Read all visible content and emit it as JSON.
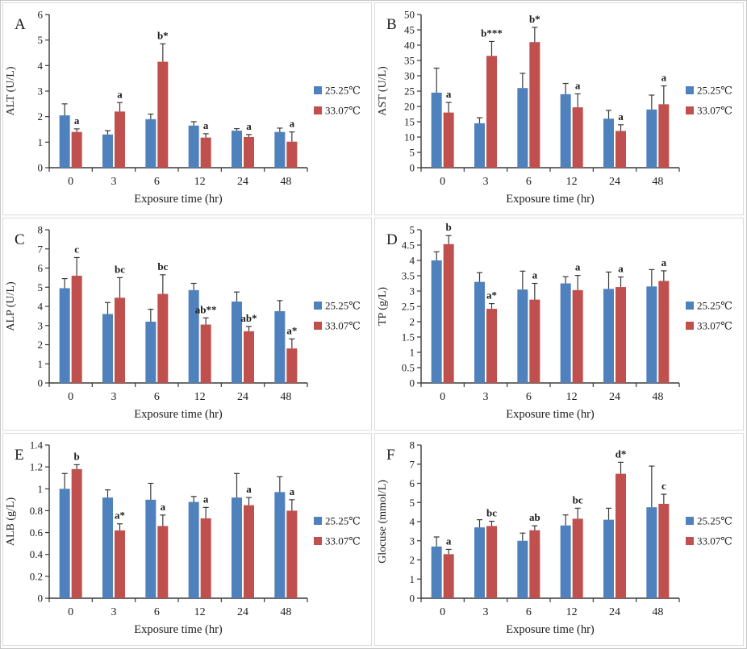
{
  "figure": {
    "xlabel": "Exposure time (hr)",
    "categories": [
      "0",
      "3",
      "6",
      "12",
      "24",
      "48"
    ],
    "legend": [
      {
        "label": "25.25℃",
        "color": "#4f81bd"
      },
      {
        "label": "33.07℃",
        "color": "#c0504d"
      }
    ],
    "colors": {
      "series1": "#4f81bd",
      "series2": "#c0504d",
      "axis": "#3a3a3a",
      "error_bar": "#3a3a3a",
      "text": "#1c1c1c"
    },
    "legend_position": "right",
    "grid_lines": "off",
    "error_bars": "upper-only"
  },
  "chart_data": [
    {
      "panel": "A",
      "type": "bar",
      "ylabel": "ALT (U/L)",
      "xlabel": "Exposure time (hr)",
      "categories": [
        "0",
        "3",
        "6",
        "12",
        "24",
        "48"
      ],
      "ylim": [
        0,
        6
      ],
      "ytick_step": 1,
      "series": [
        {
          "name": "25.25℃",
          "color": "#4f81bd",
          "values": [
            2.05,
            1.3,
            1.9,
            1.65,
            1.45,
            1.4
          ],
          "errors": [
            0.45,
            0.15,
            0.2,
            0.15,
            0.08,
            0.15
          ]
        },
        {
          "name": "33.07℃",
          "color": "#c0504d",
          "values": [
            1.4,
            2.2,
            4.15,
            1.18,
            1.2,
            1.02
          ],
          "errors": [
            0.12,
            0.35,
            0.7,
            0.15,
            0.1,
            0.38
          ],
          "sig_labels": [
            "a",
            "a",
            "b*",
            "a",
            "a",
            "a"
          ]
        }
      ]
    },
    {
      "panel": "B",
      "type": "bar",
      "ylabel": "AST (U/L)",
      "xlabel": "Exposure time (hr)",
      "categories": [
        "0",
        "3",
        "6",
        "12",
        "24",
        "48"
      ],
      "ylim": [
        0,
        50
      ],
      "ytick_step": 5,
      "series": [
        {
          "name": "25.25℃",
          "color": "#4f81bd",
          "values": [
            24.5,
            14.5,
            26,
            24,
            16,
            19
          ],
          "errors": [
            8,
            1.8,
            4.8,
            3.5,
            2.7,
            4.7
          ]
        },
        {
          "name": "33.07℃",
          "color": "#c0504d",
          "values": [
            18,
            36.5,
            41,
            19.7,
            12,
            20.7
          ],
          "errors": [
            3.3,
            4.7,
            4.8,
            4.4,
            2,
            6
          ],
          "sig_labels": [
            "a",
            "b***",
            "b*",
            "a",
            "a",
            "a"
          ]
        }
      ]
    },
    {
      "panel": "C",
      "type": "bar",
      "ylabel": "ALP (U/L)",
      "xlabel": "Exposure time (hr)",
      "categories": [
        "0",
        "3",
        "6",
        "12",
        "24",
        "48"
      ],
      "ylim": [
        0,
        8
      ],
      "ytick_step": 1,
      "series": [
        {
          "name": "25.25℃",
          "color": "#4f81bd",
          "values": [
            4.95,
            3.6,
            3.2,
            4.85,
            4.25,
            3.75
          ],
          "errors": [
            0.5,
            0.6,
            0.65,
            0.35,
            0.5,
            0.55
          ]
        },
        {
          "name": "33.07℃",
          "color": "#c0504d",
          "values": [
            5.6,
            4.45,
            4.65,
            3.05,
            2.7,
            1.8
          ],
          "errors": [
            0.95,
            1.05,
            1.0,
            0.35,
            0.25,
            0.5
          ],
          "sig_labels": [
            "c",
            "bc",
            "bc",
            "ab**",
            "ab*",
            "a*"
          ]
        }
      ]
    },
    {
      "panel": "D",
      "type": "bar",
      "ylabel": "TP (g/L)",
      "xlabel": "Exposure time (hr)",
      "categories": [
        "0",
        "3",
        "6",
        "12",
        "24",
        "48"
      ],
      "ylim": [
        0,
        5
      ],
      "ytick_step": 0.5,
      "series": [
        {
          "name": "25.25℃",
          "color": "#4f81bd",
          "values": [
            4.0,
            3.3,
            3.05,
            3.25,
            3.07,
            3.15
          ],
          "errors": [
            0.28,
            0.3,
            0.6,
            0.22,
            0.55,
            0.55
          ]
        },
        {
          "name": "33.07℃",
          "color": "#c0504d",
          "values": [
            4.53,
            2.42,
            2.72,
            3.03,
            3.13,
            3.33
          ],
          "errors": [
            0.28,
            0.17,
            0.53,
            0.48,
            0.33,
            0.33
          ],
          "sig_labels": [
            "b",
            "a*",
            "a",
            "a",
            "a",
            "a"
          ]
        }
      ]
    },
    {
      "panel": "E",
      "type": "bar",
      "ylabel": "ALB (g/L)",
      "xlabel": "Exposure time (hr)",
      "categories": [
        "0",
        "3",
        "6",
        "12",
        "24",
        "48"
      ],
      "ylim": [
        0,
        1.4
      ],
      "ytick_step": 0.2,
      "series": [
        {
          "name": "25.25℃",
          "color": "#4f81bd",
          "values": [
            1.0,
            0.92,
            0.9,
            0.88,
            0.92,
            0.97
          ],
          "errors": [
            0.14,
            0.07,
            0.15,
            0.05,
            0.22,
            0.14
          ]
        },
        {
          "name": "33.07℃",
          "color": "#c0504d",
          "values": [
            1.18,
            0.62,
            0.66,
            0.73,
            0.85,
            0.8
          ],
          "errors": [
            0.04,
            0.06,
            0.1,
            0.1,
            0.07,
            0.1
          ],
          "sig_labels": [
            "b",
            "a*",
            "a",
            "a",
            "a",
            "a"
          ]
        }
      ]
    },
    {
      "panel": "F",
      "type": "bar",
      "ylabel": "Glocuse (mmol/L)",
      "xlabel": "Exposure time (hr)",
      "categories": [
        "0",
        "3",
        "6",
        "12",
        "24",
        "48"
      ],
      "ylim": [
        0,
        8
      ],
      "ytick_step": 1,
      "series": [
        {
          "name": "25.25℃",
          "color": "#4f81bd",
          "values": [
            2.7,
            3.7,
            3.0,
            3.8,
            4.1,
            4.75
          ],
          "errors": [
            0.5,
            0.4,
            0.4,
            0.55,
            0.6,
            2.15
          ]
        },
        {
          "name": "33.07℃",
          "color": "#c0504d",
          "values": [
            2.3,
            3.77,
            3.55,
            4.15,
            6.5,
            4.93
          ],
          "errors": [
            0.25,
            0.25,
            0.23,
            0.55,
            0.6,
            0.5
          ],
          "sig_labels": [
            "a",
            "bc",
            "ab",
            "bc",
            "d*",
            "c"
          ]
        }
      ]
    }
  ]
}
